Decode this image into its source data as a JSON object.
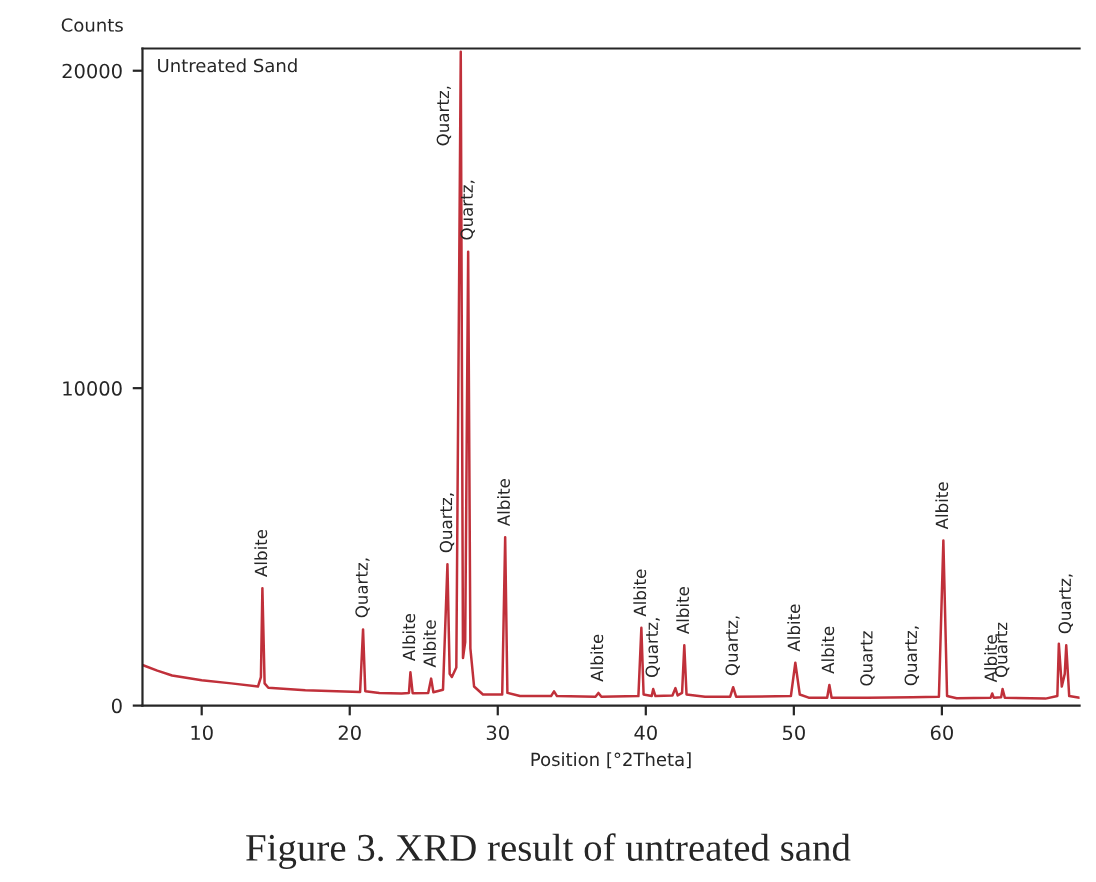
{
  "chart_data": {
    "type": "line",
    "ylabel": "Counts",
    "xlabel": "Position [°2Theta]",
    "xlim": [
      6,
      69.3
    ],
    "xticks": [
      10,
      20,
      30,
      40,
      50,
      60
    ],
    "ylim": [
      0,
      20700
    ],
    "yticks": [
      0,
      10000,
      20000
    ],
    "grid": false,
    "line_style": "solid",
    "series": [
      {
        "color": "#c0303a",
        "x": [
          6.0,
          7,
          8,
          10,
          12,
          13.8,
          14.0,
          14.1,
          14.25,
          14.5,
          17,
          20.7,
          20.9,
          21.05,
          22,
          23.5,
          24.0,
          24.1,
          24.25,
          25.3,
          25.5,
          25.65,
          26.3,
          26.6,
          26.75,
          26.9,
          27.2,
          27.5,
          27.65,
          27.8,
          28.0,
          28.15,
          28.4,
          29,
          30.3,
          30.5,
          30.65,
          31.5,
          33.6,
          33.8,
          34.0,
          36.6,
          36.8,
          37.0,
          39.5,
          39.7,
          39.85,
          40.4,
          40.5,
          40.65,
          41.8,
          42.0,
          42.15,
          42.45,
          42.6,
          42.75,
          44,
          45.7,
          45.9,
          46.1,
          49.8,
          50.1,
          50.4,
          51,
          52.25,
          52.4,
          52.55,
          55,
          58.0,
          59.8,
          60.1,
          60.35,
          61,
          63.3,
          63.4,
          63.5,
          64.0,
          64.1,
          64.25,
          67,
          67.8,
          67.9,
          68.1,
          68.3,
          68.4,
          68.6,
          69.3
        ],
        "values": [
          1280,
          1100,
          950,
          800,
          700,
          600,
          900,
          3700,
          700,
          560,
          480,
          430,
          2400,
          450,
          400,
          380,
          400,
          1050,
          390,
          400,
          850,
          420,
          500,
          4450,
          1000,
          900,
          1200,
          20600,
          1500,
          2000,
          14300,
          1800,
          600,
          350,
          350,
          5300,
          400,
          300,
          300,
          450,
          300,
          280,
          400,
          280,
          300,
          2450,
          350,
          300,
          520,
          300,
          320,
          550,
          320,
          400,
          1900,
          350,
          280,
          280,
          580,
          280,
          300,
          1350,
          350,
          250,
          250,
          650,
          250,
          250,
          260,
          280,
          5200,
          300,
          230,
          250,
          380,
          250,
          260,
          520,
          250,
          220,
          300,
          1950,
          600,
          1000,
          1900,
          300,
          250
        ]
      }
    ],
    "annotations": [
      "Untreated Sand",
      "Figure 3. XRD result of untreated sand",
      {
        "text": "Albite",
        "x": 14.1,
        "y": 3700
      },
      {
        "text": "Quartz,",
        "x": 20.9,
        "y": 2400
      },
      {
        "text": "Albite",
        "x": 24.1,
        "y": 1050
      },
      {
        "text": "Albite",
        "x": 25.5,
        "y": 850
      },
      {
        "text": "Quartz,",
        "x": 26.6,
        "y": 4450
      },
      {
        "text": "Quartz,",
        "x": 27.5,
        "y": 20600
      },
      {
        "text": "Quartz,",
        "x": 28.0,
        "y": 14300
      },
      {
        "text": "Albite",
        "x": 30.5,
        "y": 5300
      },
      {
        "text": "Albite",
        "x": 36.8,
        "y": 400
      },
      {
        "text": "Albite",
        "x": 39.7,
        "y": 2450
      },
      {
        "text": "Quartz,",
        "x": 40.5,
        "y": 520
      },
      {
        "text": "Albite",
        "x": 42.6,
        "y": 1900
      },
      {
        "text": "Quartz,",
        "x": 45.9,
        "y": 580
      },
      {
        "text": "Albite",
        "x": 50.1,
        "y": 1350
      },
      {
        "text": "Albite",
        "x": 52.4,
        "y": 650
      },
      {
        "text": "Quartz",
        "x": 55.0,
        "y": 250
      },
      {
        "text": "Quartz,",
        "x": 58.0,
        "y": 260
      },
      {
        "text": "Albite",
        "x": 60.1,
        "y": 5200
      },
      {
        "text": "Albite",
        "x": 63.4,
        "y": 380
      },
      {
        "text": "Quartz",
        "x": 64.1,
        "y": 520
      },
      {
        "text": "Quartz,",
        "x": 68.4,
        "y": 1900
      }
    ]
  }
}
